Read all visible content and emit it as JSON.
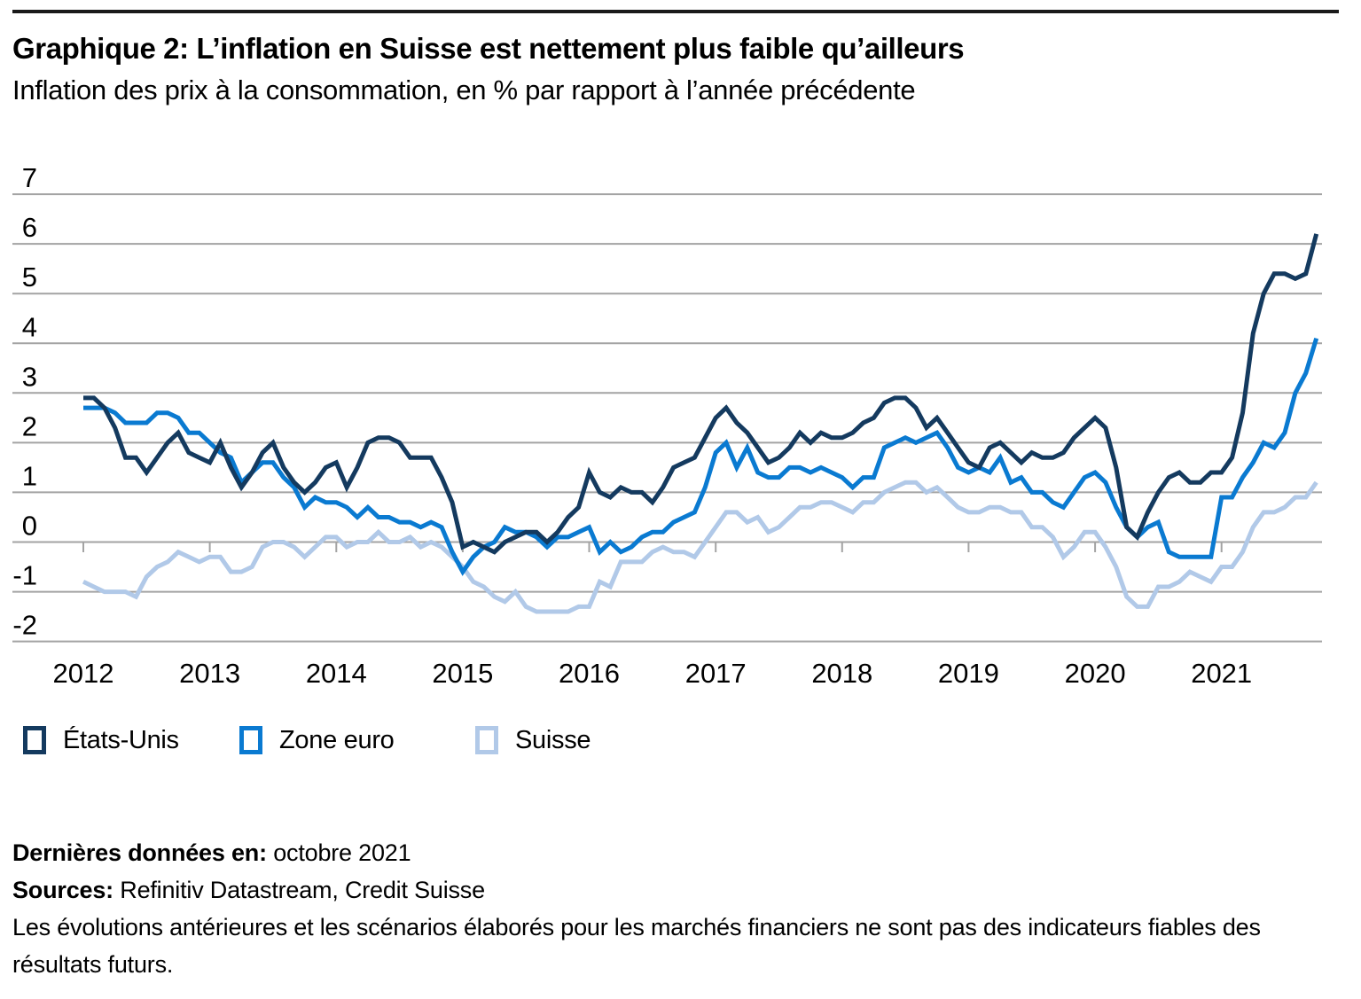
{
  "chart_data": {
    "type": "line",
    "title": "Graphique 2: L’inflation en Suisse est nettement plus faible qu’ailleurs",
    "subtitle": "Inflation des prix à la consommation, en % par rapport à l’année précédente",
    "frequency": "monthly",
    "x_start": "2012-01",
    "x_end": "2021-10",
    "x_tick_labels": [
      "2012",
      "2013",
      "2014",
      "2015",
      "2016",
      "2017",
      "2018",
      "2019",
      "2020",
      "2021"
    ],
    "y_ticks": [
      7,
      6,
      5,
      4,
      3,
      2,
      1,
      0,
      -1,
      -2
    ],
    "ylim": [
      -2,
      7
    ],
    "grid": "horizontal",
    "legend_position": "bottom-left",
    "series": [
      {
        "name": "États-Unis",
        "color": "#143A5F",
        "values": [
          2.9,
          2.9,
          2.7,
          2.3,
          1.7,
          1.7,
          1.4,
          1.7,
          2.0,
          2.2,
          1.8,
          1.7,
          1.6,
          2.0,
          1.5,
          1.1,
          1.4,
          1.8,
          2.0,
          1.5,
          1.2,
          1.0,
          1.2,
          1.5,
          1.6,
          1.1,
          1.5,
          2.0,
          2.1,
          2.1,
          2.0,
          1.7,
          1.7,
          1.7,
          1.3,
          0.8,
          -0.1,
          0.0,
          -0.1,
          -0.2,
          0.0,
          0.1,
          0.2,
          0.2,
          0.0,
          0.2,
          0.5,
          0.7,
          1.4,
          1.0,
          0.9,
          1.1,
          1.0,
          1.0,
          0.8,
          1.1,
          1.5,
          1.6,
          1.7,
          2.1,
          2.5,
          2.7,
          2.4,
          2.2,
          1.9,
          1.6,
          1.7,
          1.9,
          2.2,
          2.0,
          2.2,
          2.1,
          2.1,
          2.2,
          2.4,
          2.5,
          2.8,
          2.9,
          2.9,
          2.7,
          2.3,
          2.5,
          2.2,
          1.9,
          1.6,
          1.5,
          1.9,
          2.0,
          1.8,
          1.6,
          1.8,
          1.7,
          1.7,
          1.8,
          2.1,
          2.3,
          2.5,
          2.3,
          1.5,
          0.3,
          0.1,
          0.6,
          1.0,
          1.3,
          1.4,
          1.2,
          1.2,
          1.4,
          1.4,
          1.7,
          2.6,
          4.2,
          5.0,
          5.4,
          5.4,
          5.3,
          5.4,
          6.2
        ]
      },
      {
        "name": "Zone euro",
        "color": "#0A7AD1",
        "values": [
          2.7,
          2.7,
          2.7,
          2.6,
          2.4,
          2.4,
          2.4,
          2.6,
          2.6,
          2.5,
          2.2,
          2.2,
          2.0,
          1.8,
          1.7,
          1.2,
          1.4,
          1.6,
          1.6,
          1.3,
          1.1,
          0.7,
          0.9,
          0.8,
          0.8,
          0.7,
          0.5,
          0.7,
          0.5,
          0.5,
          0.4,
          0.4,
          0.3,
          0.4,
          0.3,
          -0.2,
          -0.6,
          -0.3,
          -0.1,
          0.0,
          0.3,
          0.2,
          0.2,
          0.1,
          -0.1,
          0.1,
          0.1,
          0.2,
          0.3,
          -0.2,
          0.0,
          -0.2,
          -0.1,
          0.1,
          0.2,
          0.2,
          0.4,
          0.5,
          0.6,
          1.1,
          1.8,
          2.0,
          1.5,
          1.9,
          1.4,
          1.3,
          1.3,
          1.5,
          1.5,
          1.4,
          1.5,
          1.4,
          1.3,
          1.1,
          1.3,
          1.3,
          1.9,
          2.0,
          2.1,
          2.0,
          2.1,
          2.2,
          1.9,
          1.5,
          1.4,
          1.5,
          1.4,
          1.7,
          1.2,
          1.3,
          1.0,
          1.0,
          0.8,
          0.7,
          1.0,
          1.3,
          1.4,
          1.2,
          0.7,
          0.3,
          0.1,
          0.3,
          0.4,
          -0.2,
          -0.3,
          -0.3,
          -0.3,
          -0.3,
          0.9,
          0.9,
          1.3,
          1.6,
          2.0,
          1.9,
          2.2,
          3.0,
          3.4,
          4.1
        ]
      },
      {
        "name": "Suisse",
        "color": "#B1C9E8",
        "values": [
          -0.8,
          -0.9,
          -1.0,
          -1.0,
          -1.0,
          -1.1,
          -0.7,
          -0.5,
          -0.4,
          -0.2,
          -0.3,
          -0.4,
          -0.3,
          -0.3,
          -0.6,
          -0.6,
          -0.5,
          -0.1,
          0.0,
          0.0,
          -0.1,
          -0.3,
          -0.1,
          0.1,
          0.1,
          -0.1,
          0.0,
          0.0,
          0.2,
          0.0,
          0.0,
          0.1,
          -0.1,
          0.0,
          -0.1,
          -0.3,
          -0.5,
          -0.8,
          -0.9,
          -1.1,
          -1.2,
          -1.0,
          -1.3,
          -1.4,
          -1.4,
          -1.4,
          -1.4,
          -1.3,
          -1.3,
          -0.8,
          -0.9,
          -0.4,
          -0.4,
          -0.4,
          -0.2,
          -0.1,
          -0.2,
          -0.2,
          -0.3,
          0.0,
          0.3,
          0.6,
          0.6,
          0.4,
          0.5,
          0.2,
          0.3,
          0.5,
          0.7,
          0.7,
          0.8,
          0.8,
          0.7,
          0.6,
          0.8,
          0.8,
          1.0,
          1.1,
          1.2,
          1.2,
          1.0,
          1.1,
          0.9,
          0.7,
          0.6,
          0.6,
          0.7,
          0.7,
          0.6,
          0.6,
          0.3,
          0.3,
          0.1,
          -0.3,
          -0.1,
          0.2,
          0.2,
          -0.1,
          -0.5,
          -1.1,
          -1.3,
          -1.3,
          -0.9,
          -0.9,
          -0.8,
          -0.6,
          -0.7,
          -0.8,
          -0.5,
          -0.5,
          -0.2,
          0.3,
          0.6,
          0.6,
          0.7,
          0.9,
          0.9,
          1.2
        ]
      }
    ]
  },
  "footer": {
    "last_data_label": "Dernières données en:",
    "last_data_value": "octobre 2021",
    "sources_label": "Sources:",
    "sources_value": "Refinitiv Datastream, Credit Suisse",
    "disclaimer": "Les évolutions antérieures et les scénarios élaborés pour les marchés financiers ne sont pas des indicateurs fiables des résultats futurs."
  },
  "colors": {
    "grid": "#A3A3A3",
    "rule": "#1A1A1A",
    "text": "#000000"
  }
}
